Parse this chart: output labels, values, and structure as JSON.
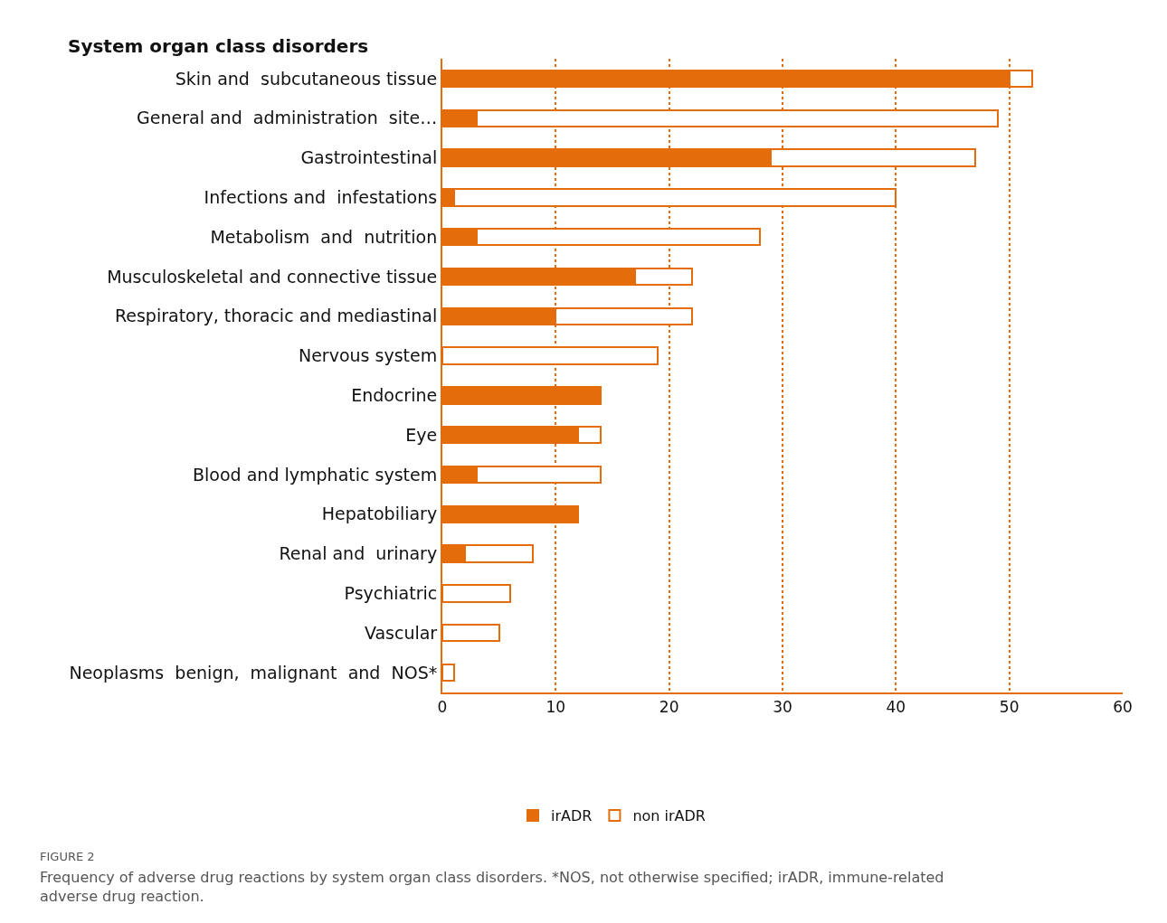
{
  "chart_data": {
    "type": "bar",
    "orientation": "horizontal",
    "stacked": true,
    "title": "System organ class disorders",
    "categories": [
      "Skin and  subcutaneous tissue",
      "General and  administration  site…",
      "Gastrointestinal",
      "Infections and  infestations",
      "Metabolism  and  nutrition",
      "Musculoskeletal and connective tissue",
      "Respiratory, thoracic and mediastinal",
      "Nervous system",
      "Endocrine",
      "Eye",
      "Blood and lymphatic system",
      "Hepatobiliary",
      "Renal and  urinary",
      "Psychiatric",
      "Vascular",
      "Neoplasms  benign,  malignant  and  NOS*"
    ],
    "series": [
      {
        "name": "irADR",
        "color": "#e46c0a",
        "values": [
          50,
          3,
          29,
          1,
          3,
          17,
          10,
          0,
          14,
          12,
          3,
          12,
          2,
          0,
          0,
          0
        ]
      },
      {
        "name": "non irADR",
        "color": "#ffffff",
        "values": [
          2,
          46,
          18,
          39,
          25,
          5,
          12,
          19,
          0,
          2,
          11,
          0,
          6,
          6,
          5,
          1
        ]
      }
    ],
    "xlim": [
      0,
      60
    ],
    "xticks": [
      0,
      10,
      20,
      30,
      40,
      50,
      60
    ],
    "grid": "x",
    "legend": "bottom",
    "annotations": [
      "FIGURE 2",
      "Frequency of adverse drug reactions by system organ class disorders. *NOS, not otherwise specified; irADR, immune-related adverse drug reaction."
    ]
  }
}
